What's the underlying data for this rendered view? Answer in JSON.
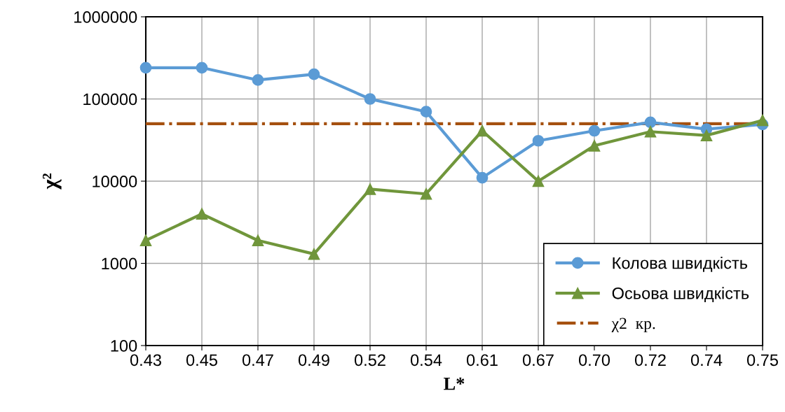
{
  "chart_data": {
    "type": "line",
    "xlabel": "L*",
    "ylabel": "χ²",
    "log": "y",
    "categories": [
      "0.43",
      "0.45",
      "0.47",
      "0.49",
      "0.52",
      "0.54",
      "0.61",
      "0.67",
      "0.70",
      "0.72",
      "0.74",
      "0.75"
    ],
    "series": [
      {
        "name": "Колова швидкість",
        "color": "#5b9bd5",
        "marker": "circle",
        "values": [
          240000,
          240000,
          170000,
          200000,
          100000,
          70000,
          11000,
          31000,
          41000,
          52000,
          43000,
          49000
        ]
      },
      {
        "name": "Осьова швидкість",
        "color": "#70963b",
        "marker": "triangle",
        "values": [
          1900,
          4000,
          1900,
          1300,
          8000,
          7000,
          41000,
          10000,
          27000,
          40000,
          36000,
          55000
        ]
      }
    ],
    "ref_lines": [
      {
        "axis": "y",
        "value": 50000,
        "label": "χ2  кр.",
        "color": "#a5500f",
        "line_style": "dashdot"
      }
    ],
    "ylim": [
      100,
      1000000
    ],
    "yticks": [
      100,
      1000,
      10000,
      100000,
      1000000
    ],
    "grid": true,
    "legend": "bottom right"
  }
}
